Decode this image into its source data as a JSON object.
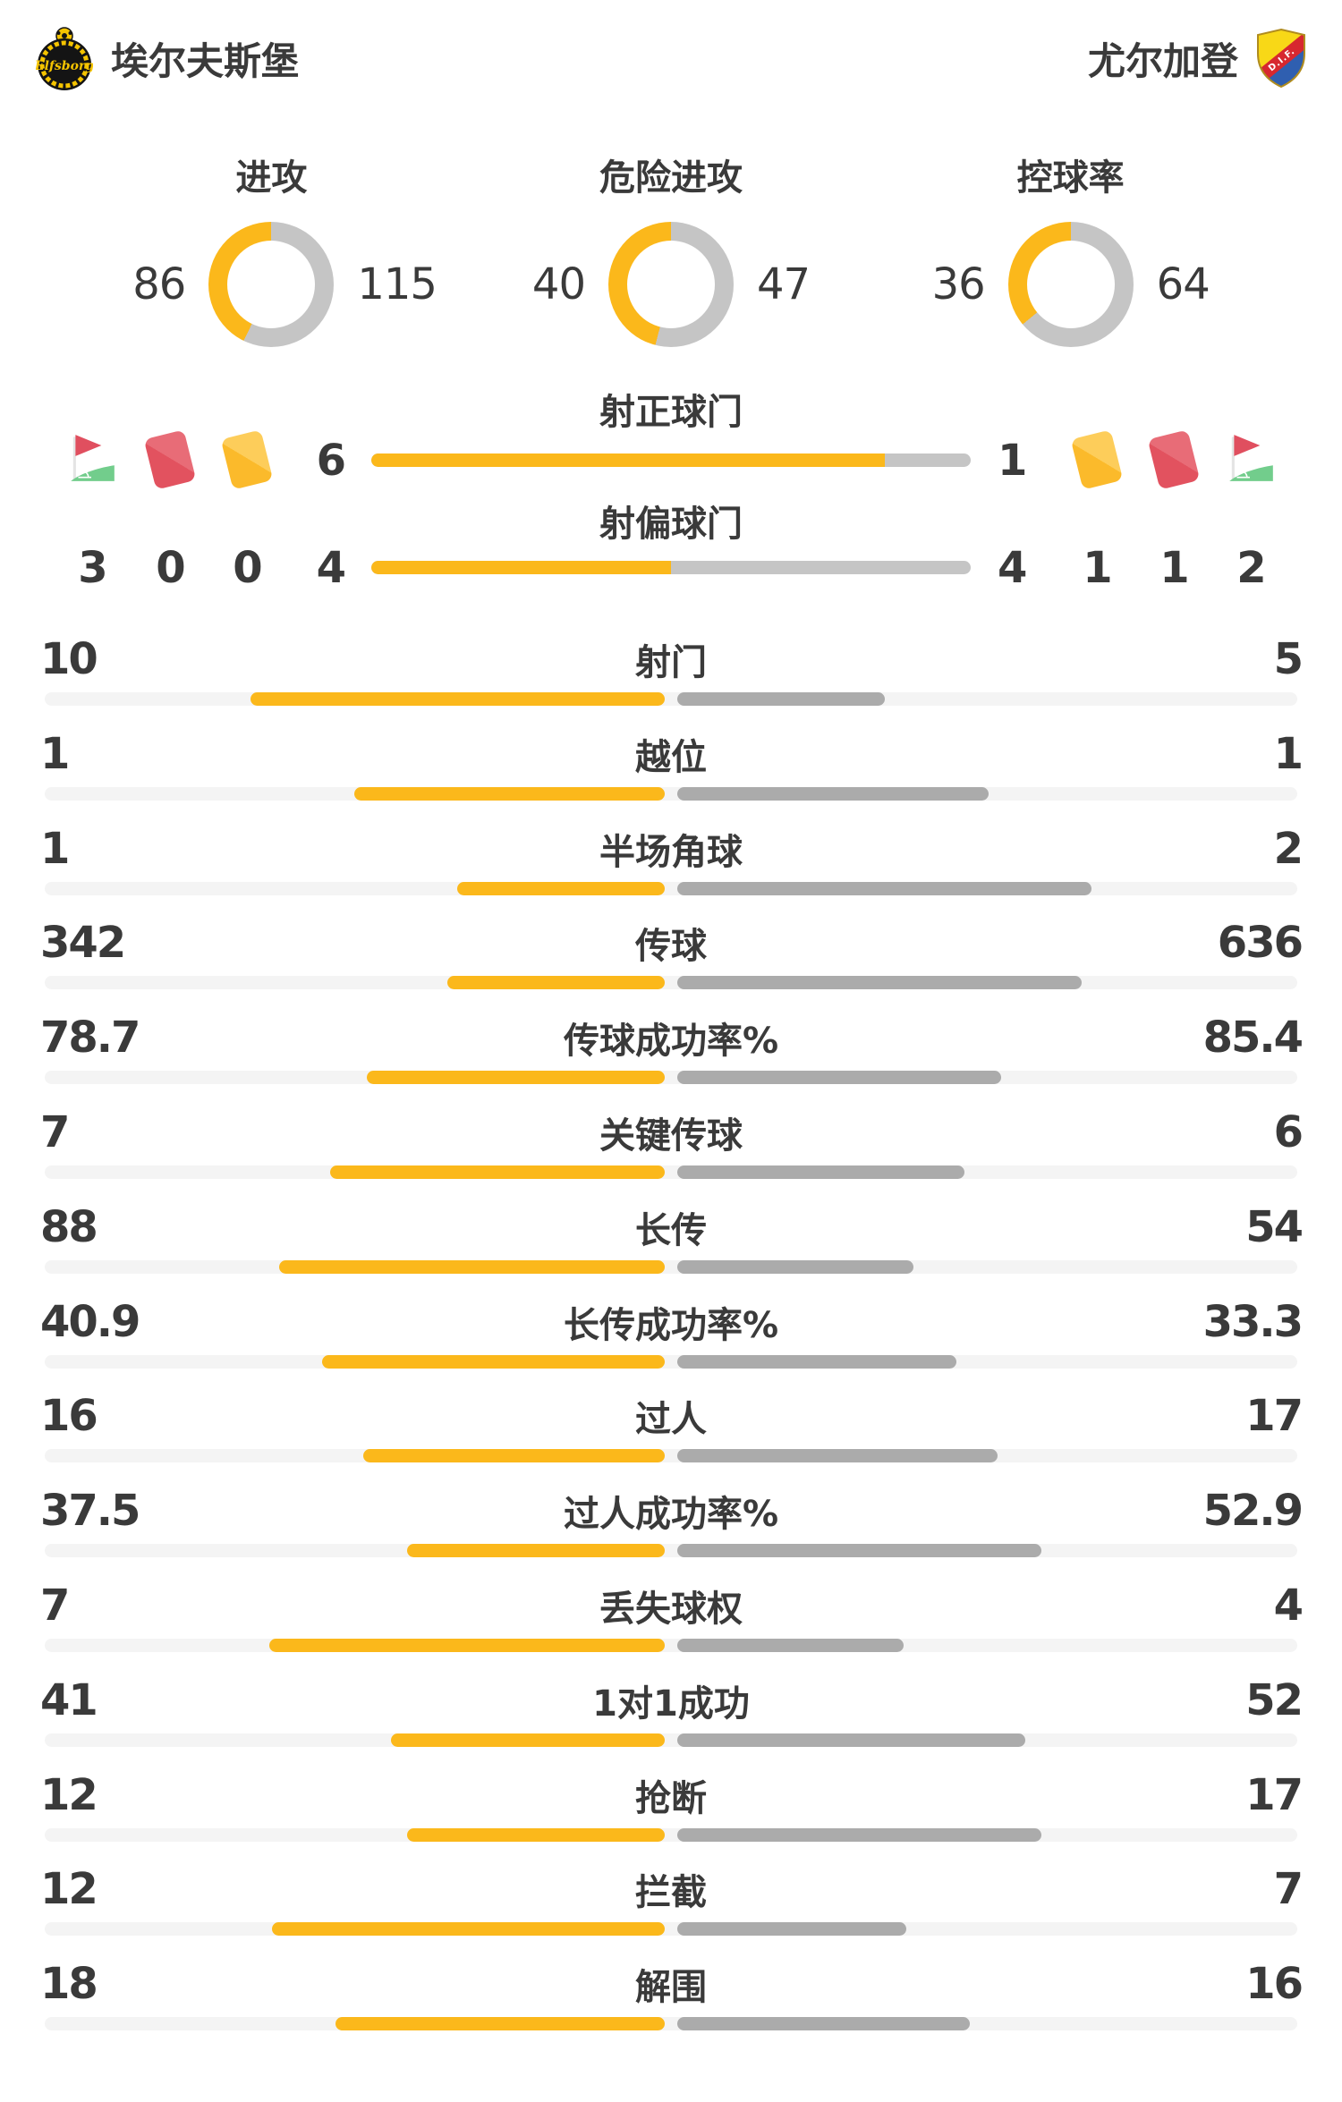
{
  "header": {
    "home_team": "埃尔夫斯堡",
    "away_team": "尤尔加登",
    "home_logo": "elfsborg-crest",
    "away_logo": "djurgarden-shield"
  },
  "colors": {
    "yellow": "#FBB81B",
    "donut_gray": "#C5C5C5",
    "bar_gray": "#ABABAB",
    "track": "#F4F4F4",
    "text": "#3A3A3A",
    "card_red": "#E2525F",
    "card_red_light": "#E86C77",
    "card_yellow": "#FBBA2B",
    "card_yellow_light": "#FDCD5A",
    "flag_red": "#E04F5F",
    "flag_green": "#72CD8C",
    "flag_pole": "#E4E4E4"
  },
  "chart_data": {
    "type": "comparison",
    "home": "埃尔夫斯堡",
    "away": "尤尔加登",
    "legend_position": "none",
    "donuts": [
      {
        "label": "进攻",
        "home": 86,
        "away": 115
      },
      {
        "label": "危险进攻",
        "home": 40,
        "away": 47
      },
      {
        "label": "控球率",
        "home": 36,
        "away": 64
      }
    ],
    "shots": [
      {
        "label": "射正球门",
        "home": 6,
        "away": 1
      },
      {
        "label": "射偏球门",
        "home": 4,
        "away": 4
      }
    ],
    "discipline": {
      "home": {
        "corners": 3,
        "red_cards": 0,
        "yellow_cards": 0
      },
      "away": {
        "yellow_cards": 1,
        "red_cards": 1,
        "corners": 2
      }
    },
    "stats": [
      {
        "label": "射门",
        "home": 10,
        "away": 5
      },
      {
        "label": "越位",
        "home": 1,
        "away": 1
      },
      {
        "label": "半场角球",
        "home": 1,
        "away": 2
      },
      {
        "label": "传球",
        "home": 342,
        "away": 636
      },
      {
        "label": "传球成功率%",
        "home": 78.7,
        "away": 85.4
      },
      {
        "label": "关键传球",
        "home": 7,
        "away": 6
      },
      {
        "label": "长传",
        "home": 88,
        "away": 54
      },
      {
        "label": "长传成功率%",
        "home": 40.9,
        "away": 33.3
      },
      {
        "label": "过人",
        "home": 16,
        "away": 17
      },
      {
        "label": "过人成功率%",
        "home": 37.5,
        "away": 52.9
      },
      {
        "label": "丢失球权",
        "home": 7,
        "away": 4
      },
      {
        "label": "1对1成功",
        "home": 41,
        "away": 52
      },
      {
        "label": "抢断",
        "home": 12,
        "away": 17
      },
      {
        "label": "拦截",
        "home": 12,
        "away": 7
      },
      {
        "label": "解围",
        "home": 18,
        "away": 16
      }
    ]
  }
}
